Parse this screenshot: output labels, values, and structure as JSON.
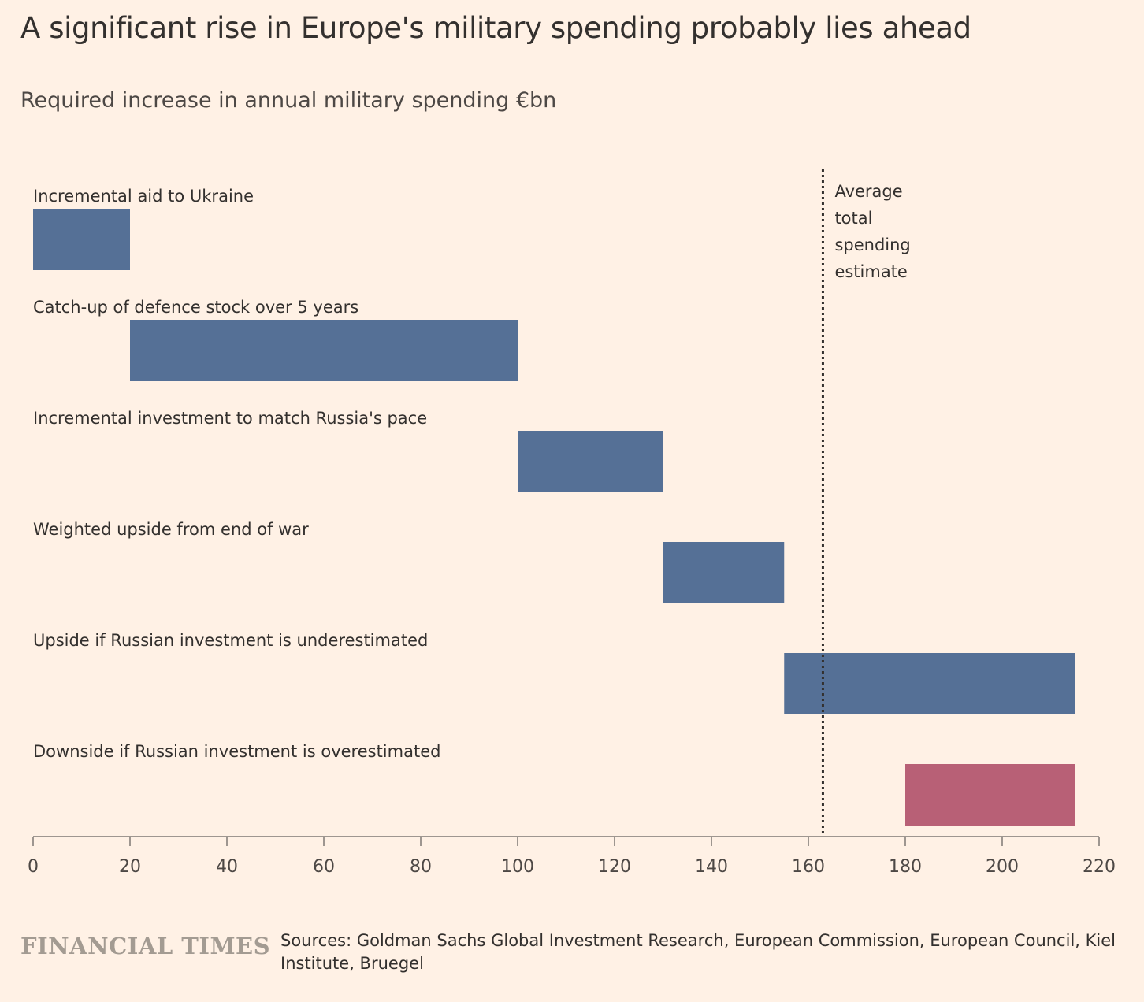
{
  "title": "A significant rise in Europe's military spending probably lies ahead",
  "subtitle": "Required increase in annual military spending €bn",
  "brand": "FINANCIAL TIMES",
  "source": "Sources: Goldman Sachs Global Investment Research, European Commission, European Council, Kiel Institute, Bruegel",
  "colors": {
    "background": "#fff1e5",
    "bar": "#557096",
    "bar_downside": "#b86076",
    "axis": "#9e9690"
  },
  "chart_data": {
    "type": "bar",
    "orientation": "horizontal",
    "layout": "floating waterfall",
    "categories": [
      "Incremental aid to Ukraine",
      "Catch-up of defence stock over 5 years",
      "Incremental investment to match Russia's pace",
      "Weighted upside from end of war",
      "Upside if Russian investment is underestimated",
      "Downside if Russian investment is overestimated"
    ],
    "bars": [
      {
        "start": 0,
        "end": 20,
        "color": "#557096"
      },
      {
        "start": 20,
        "end": 100,
        "color": "#557096"
      },
      {
        "start": 100,
        "end": 130,
        "color": "#557096"
      },
      {
        "start": 130,
        "end": 155,
        "color": "#557096"
      },
      {
        "start": 155,
        "end": 215,
        "color": "#557096"
      },
      {
        "start": 180,
        "end": 215,
        "color": "#b86076"
      }
    ],
    "xlim": [
      0,
      220
    ],
    "xticks": [
      0,
      20,
      40,
      60,
      80,
      100,
      120,
      140,
      160,
      180,
      200,
      220
    ],
    "reference_line": {
      "value": 163,
      "style": "dotted",
      "label": [
        "Average",
        "total",
        "spending",
        "estimate"
      ]
    },
    "grid": false,
    "legend": "none"
  }
}
